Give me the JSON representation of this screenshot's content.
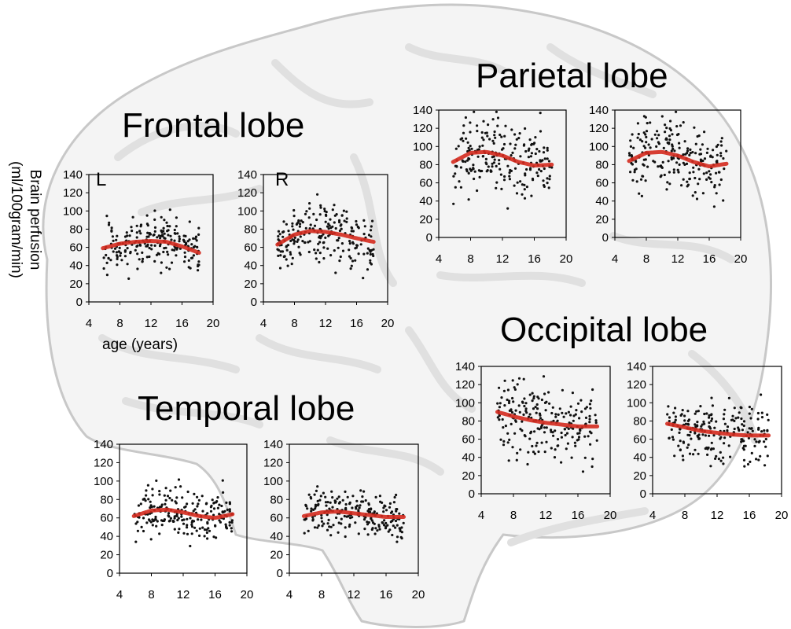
{
  "figure": {
    "ylabel_line1": "Brain perfusion",
    "ylabel_line2": "(ml/100gram/min)",
    "xlabel": "age (years)",
    "side_left": "L",
    "side_right": "R"
  },
  "lobes": {
    "frontal": "Frontal lobe",
    "parietal": "Parietal lobe",
    "occipital": "Occipital lobe",
    "temporal": "Temporal lobe"
  },
  "colors": {
    "fit_line": "#d42a1e",
    "points": "#111111",
    "brain_fill": "#f3f3f3",
    "brain_stroke": "#c9c9c9"
  },
  "chart_data": [
    {
      "id": "frontal-L",
      "type": "scatter",
      "lobe": "Frontal lobe",
      "hemisphere": "L",
      "xlim": [
        4,
        20
      ],
      "ylim": [
        0,
        140
      ],
      "xticks": [
        4,
        8,
        12,
        16,
        20
      ],
      "yticks": [
        0,
        20,
        40,
        60,
        80,
        100,
        120,
        140
      ],
      "point_range": {
        "x": [
          5.8,
          18.2
        ],
        "y_center": 64,
        "y_spread": 13
      },
      "fit": {
        "x": [
          5.8,
          8,
          10,
          12,
          14,
          16,
          18.2
        ],
        "y": [
          59,
          64,
          66,
          67,
          66,
          61,
          54
        ]
      }
    },
    {
      "id": "frontal-R",
      "type": "scatter",
      "lobe": "Frontal lobe",
      "hemisphere": "R",
      "xlim": [
        4,
        20
      ],
      "ylim": [
        0,
        140
      ],
      "xticks": [
        4,
        8,
        12,
        16,
        20
      ],
      "yticks": [
        0,
        20,
        40,
        60,
        80,
        100,
        120,
        140
      ],
      "point_range": {
        "x": [
          5.8,
          18.2
        ],
        "y_center": 75,
        "y_spread": 16
      },
      "fit": {
        "x": [
          5.8,
          8,
          10,
          12,
          14,
          16,
          18.2
        ],
        "y": [
          63,
          74,
          78,
          77,
          74,
          70,
          66
        ]
      }
    },
    {
      "id": "parietal-L",
      "type": "scatter",
      "lobe": "Parietal lobe",
      "hemisphere": "L",
      "xlim": [
        4,
        20
      ],
      "ylim": [
        0,
        140
      ],
      "xticks": [
        4,
        8,
        12,
        16,
        20
      ],
      "yticks": [
        0,
        20,
        40,
        60,
        80,
        100,
        120,
        140
      ],
      "point_range": {
        "x": [
          5.8,
          18.2
        ],
        "y_center": 88,
        "y_spread": 20
      },
      "fit": {
        "x": [
          5.8,
          8,
          10,
          12,
          14,
          16,
          18.2
        ],
        "y": [
          83,
          93,
          94,
          90,
          83,
          79,
          80
        ]
      }
    },
    {
      "id": "parietal-R",
      "type": "scatter",
      "lobe": "Parietal lobe",
      "hemisphere": "R",
      "xlim": [
        4,
        20
      ],
      "ylim": [
        0,
        140
      ],
      "xticks": [
        4,
        8,
        12,
        16,
        20
      ],
      "yticks": [
        0,
        20,
        40,
        60,
        80,
        100,
        120,
        140
      ],
      "point_range": {
        "x": [
          5.8,
          18.2
        ],
        "y_center": 87,
        "y_spread": 18
      },
      "fit": {
        "x": [
          5.8,
          8,
          10,
          12,
          14,
          16,
          18.2
        ],
        "y": [
          84,
          93,
          94,
          90,
          83,
          78,
          81
        ]
      }
    },
    {
      "id": "occipital-L",
      "type": "scatter",
      "lobe": "Occipital lobe",
      "hemisphere": "L",
      "xlim": [
        4,
        20
      ],
      "ylim": [
        0,
        140
      ],
      "xticks": [
        4,
        8,
        12,
        16,
        20
      ],
      "yticks": [
        0,
        20,
        40,
        60,
        80,
        100,
        120,
        140
      ],
      "point_range": {
        "x": [
          6.0,
          18.4
        ],
        "y_center": 78,
        "y_spread": 19
      },
      "fit": {
        "x": [
          6,
          8,
          10,
          12,
          14,
          16,
          18.4
        ],
        "y": [
          90,
          85,
          81,
          78,
          76,
          74,
          74
        ]
      }
    },
    {
      "id": "occipital-R",
      "type": "scatter",
      "lobe": "Occipital lobe",
      "hemisphere": "R",
      "xlim": [
        4,
        20
      ],
      "ylim": [
        0,
        140
      ],
      "xticks": [
        4,
        8,
        12,
        16,
        20
      ],
      "yticks": [
        0,
        20,
        40,
        60,
        80,
        100,
        120,
        140
      ],
      "point_range": {
        "x": [
          5.8,
          18.4
        ],
        "y_center": 69,
        "y_spread": 16
      },
      "fit": {
        "x": [
          5.8,
          8,
          10,
          12,
          14,
          16,
          18.4
        ],
        "y": [
          77,
          73,
          69,
          67,
          65,
          64,
          64
        ]
      }
    },
    {
      "id": "temporal-L",
      "type": "scatter",
      "lobe": "Temporal lobe",
      "hemisphere": "L",
      "xlim": [
        4,
        20
      ],
      "ylim": [
        0,
        140
      ],
      "xticks": [
        4,
        8,
        12,
        16,
        20
      ],
      "yticks": [
        0,
        20,
        40,
        60,
        80,
        100,
        120,
        140
      ],
      "point_range": {
        "x": [
          5.8,
          18.2
        ],
        "y_center": 63,
        "y_spread": 13
      },
      "fit": {
        "x": [
          5.8,
          8,
          10,
          12,
          14,
          16,
          18.2
        ],
        "y": [
          62,
          68,
          69,
          66,
          62,
          60,
          64
        ]
      }
    },
    {
      "id": "temporal-R",
      "type": "scatter",
      "lobe": "Temporal lobe",
      "hemisphere": "R",
      "xlim": [
        4,
        20
      ],
      "ylim": [
        0,
        140
      ],
      "xticks": [
        4,
        8,
        12,
        16,
        20
      ],
      "yticks": [
        0,
        20,
        40,
        60,
        80,
        100,
        120,
        140
      ],
      "point_range": {
        "x": [
          5.8,
          18.2
        ],
        "y_center": 63,
        "y_spread": 12
      },
      "fit": {
        "x": [
          5.8,
          8,
          10,
          12,
          14,
          16,
          18.2
        ],
        "y": [
          62,
          66,
          67,
          65,
          63,
          61,
          61
        ]
      }
    }
  ]
}
